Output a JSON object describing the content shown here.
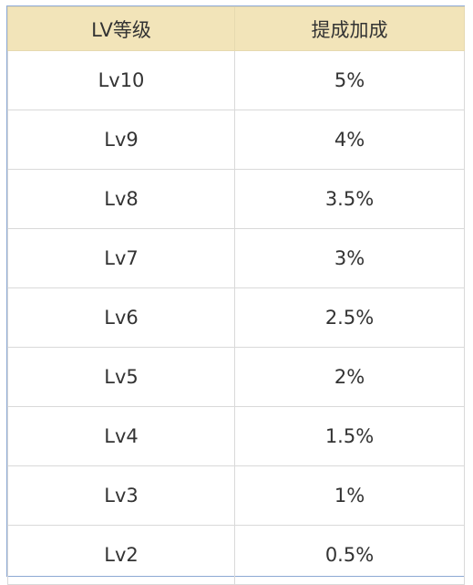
{
  "table": {
    "headers": [
      "LV等级",
      "提成加成"
    ],
    "rows": [
      [
        "Lv10",
        "5%"
      ],
      [
        "Lv9",
        "4%"
      ],
      [
        "Lv8",
        "3.5%"
      ],
      [
        "Lv7",
        "3%"
      ],
      [
        "Lv6",
        "2.5%"
      ],
      [
        "Lv5",
        "2%"
      ],
      [
        "Lv4",
        "1.5%"
      ],
      [
        "Lv3",
        "1%"
      ],
      [
        "Lv2",
        "0.5%"
      ]
    ]
  },
  "colors": {
    "header_bg": "#f2e4b9",
    "border": "#d9d9d9",
    "outer_border": "#8da9d4",
    "text": "#333333"
  }
}
